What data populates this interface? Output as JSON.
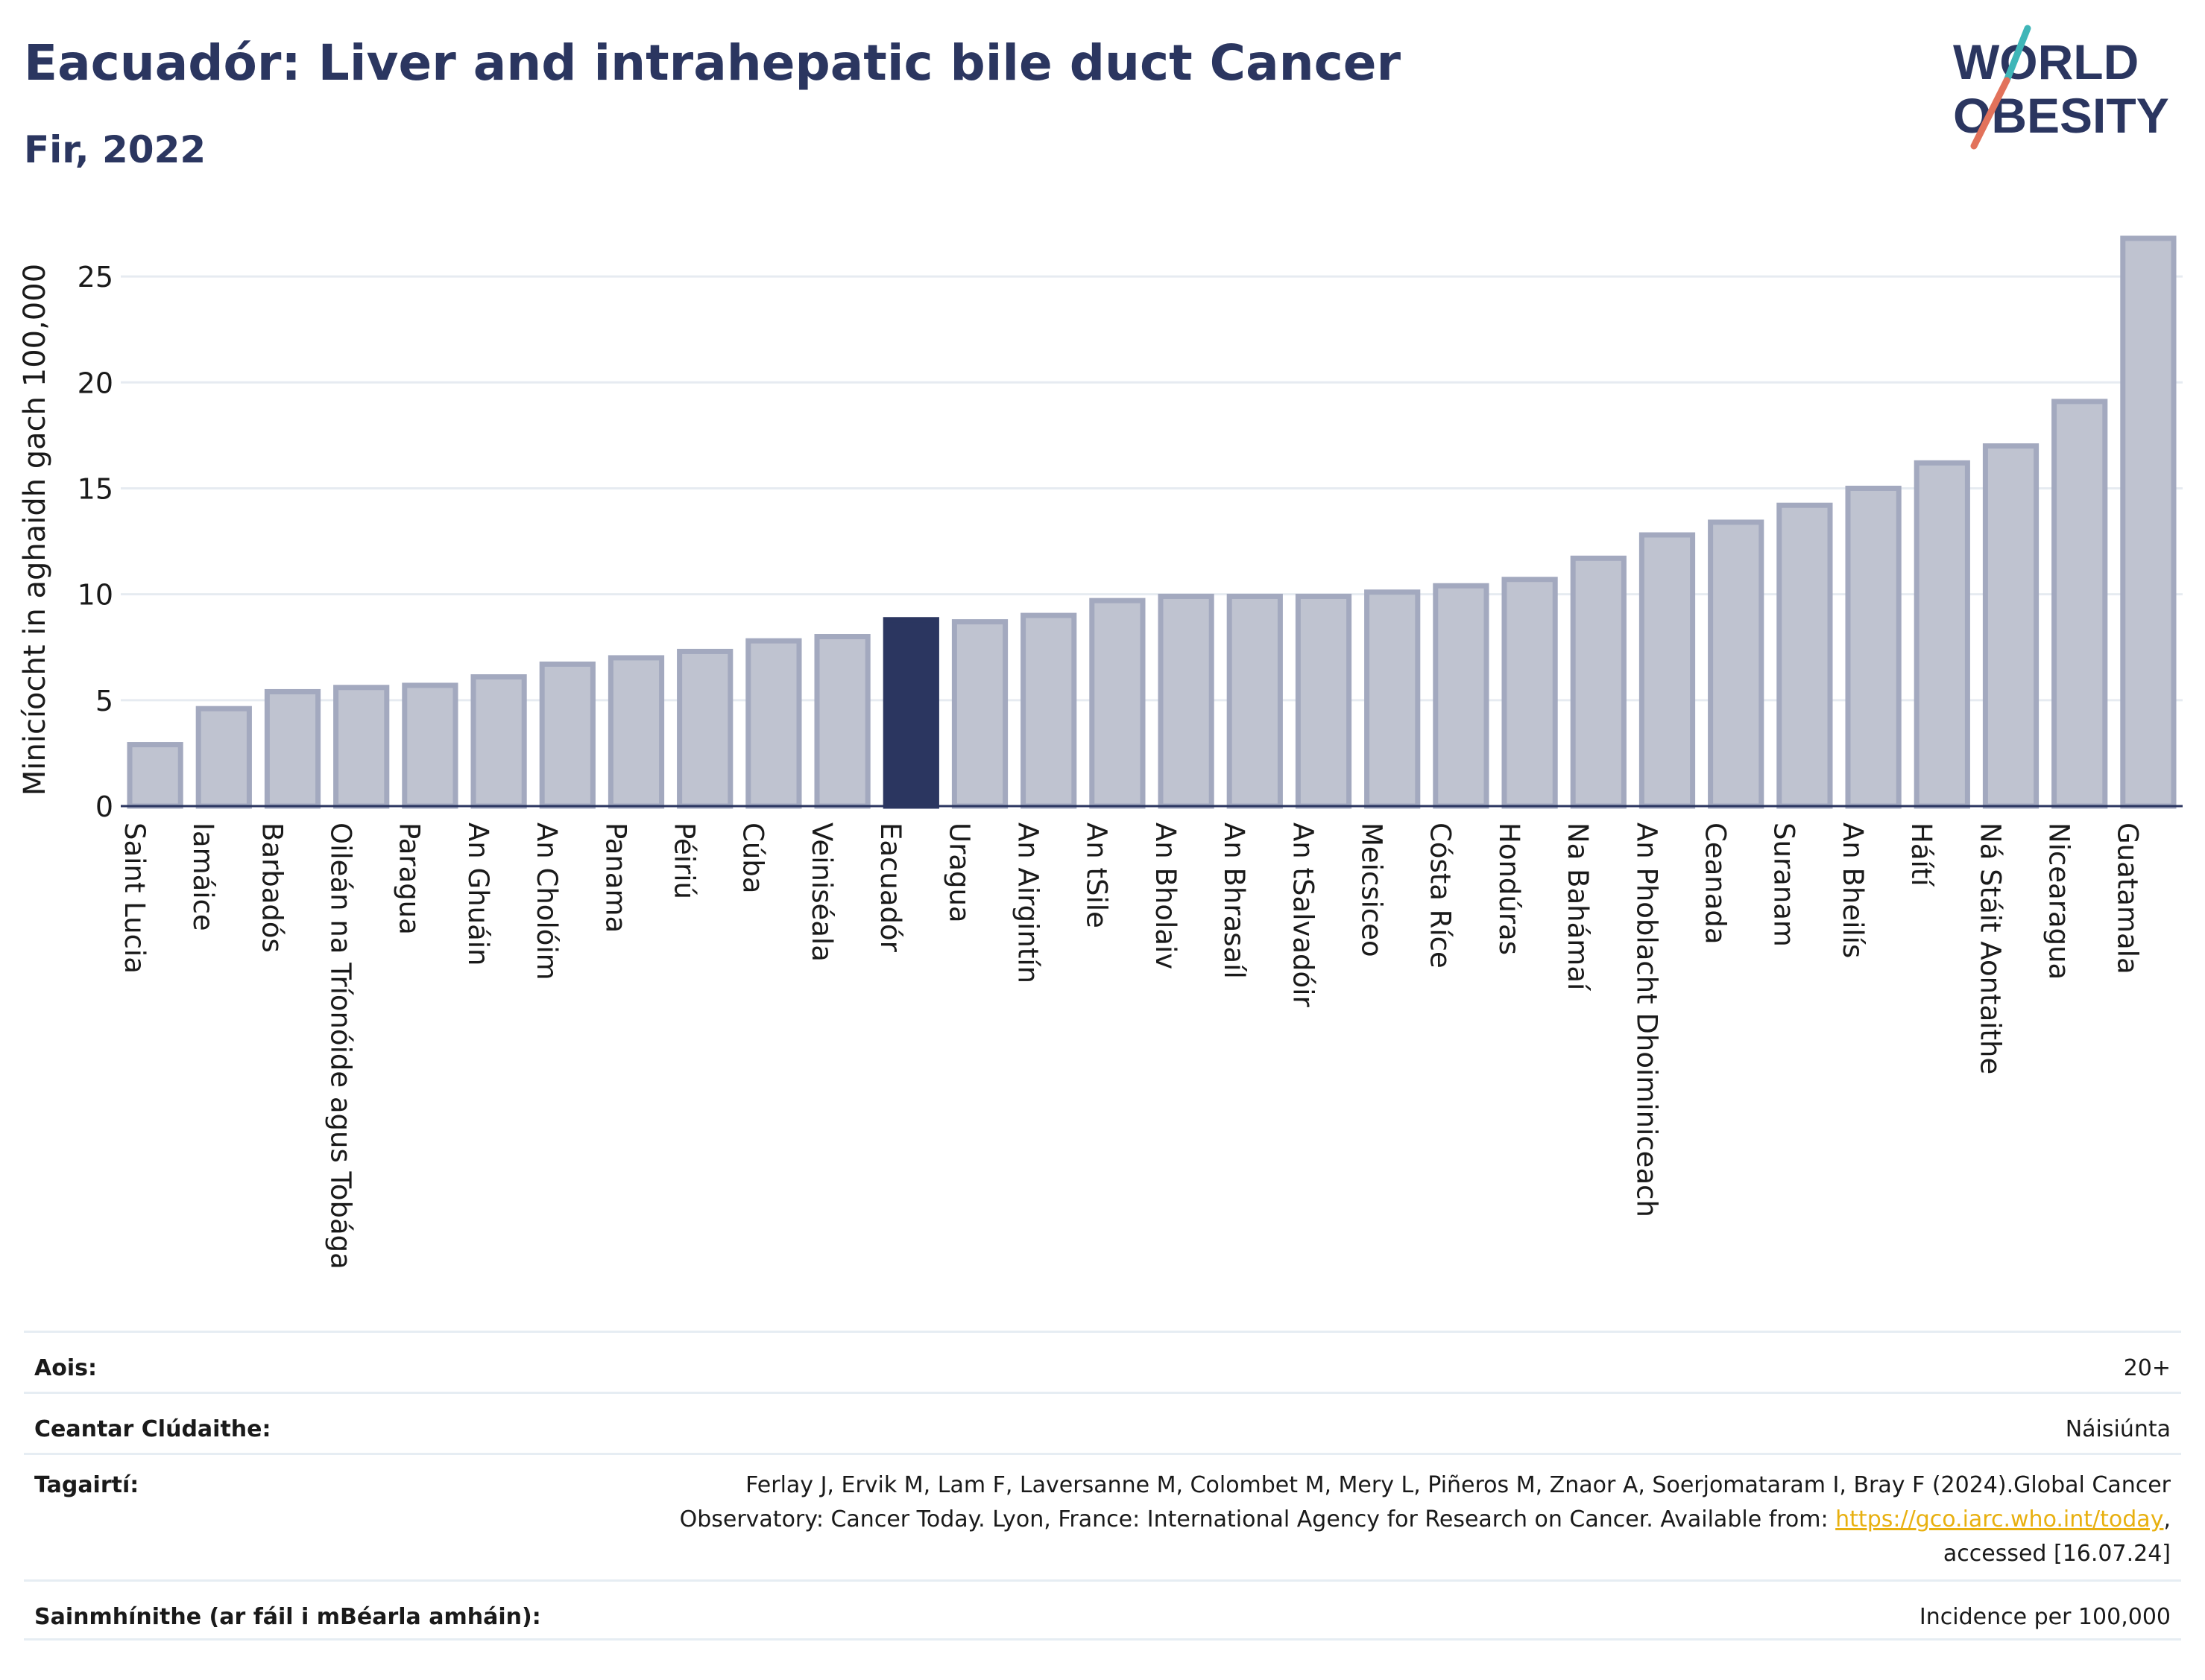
{
  "header": {
    "title": "Eacuadór: Liver and intrahepatic bile duct Cancer",
    "subtitle": "Fir, 2022"
  },
  "logo": {
    "line1": "WORLD",
    "line2": "OBESITY"
  },
  "colors": {
    "bar": "#bfc3d0",
    "bar_border": "#a3a9bf",
    "highlight": "#2b3660",
    "axis": "#2b3660",
    "grid": "#e6ebf1"
  },
  "chart_data": {
    "type": "bar",
    "title": "Eacuadór: Liver and intrahepatic bile duct Cancer",
    "subtitle": "Fir, 2022",
    "ylabel": "Minicíocht in aghaidh gach 100,000",
    "xlabel": "",
    "ylim": [
      0,
      27.5
    ],
    "yticks": [
      0,
      5,
      10,
      15,
      20,
      25
    ],
    "grid": true,
    "highlight": "Eacuadór",
    "categories": [
      "Saint Lucia",
      "Iamáice",
      "Barbadós",
      "Oileán na Tríonóide agus Tobága",
      "Paragua",
      "An Ghuáin",
      "An Cholóim",
      "Panama",
      "Péiriú",
      "Cúba",
      "Veiniséala",
      "Eacuadór",
      "Uragua",
      "An Airgintín",
      "An tSile",
      "An Bholaiv",
      "An Bhrasaíl",
      "An tSalvadóir",
      "Meicsiceo",
      "Cósta Ríce",
      "Hondúras",
      "Na Bahámaí",
      "An Phoblacht Dhoiminiceach",
      "Ceanada",
      "Suranam",
      "An Bheilís",
      "Háítí",
      "Ná Stáit Aontaithe",
      "Nicearagua",
      "Guatamala"
    ],
    "values": [
      2.9,
      4.6,
      5.4,
      5.6,
      5.7,
      6.1,
      6.7,
      7.0,
      7.3,
      7.8,
      8.0,
      8.8,
      8.7,
      9.0,
      9.7,
      9.9,
      9.9,
      9.9,
      10.1,
      10.4,
      10.7,
      11.7,
      12.8,
      13.4,
      14.2,
      15.0,
      16.2,
      17.0,
      19.1,
      26.8
    ]
  },
  "meta": {
    "age_label": "Aois:",
    "age_value": "20+",
    "area_label": "Ceantar Clúdaithe:",
    "area_value": "Náisiúnta",
    "ref_label": "Tagairtí:",
    "ref_line1": "Ferlay J, Ervik M, Lam F, Laversanne M, Colombet M, Mery L, Piñeros M, Znaor A, Soerjomataram I, Bray F (2024).Global Cancer",
    "ref_line2_pre": "Observatory: Cancer Today. Lyon, France: International Agency for Research on Cancer. Available from: ",
    "ref_link": "https://gco.iarc.who.int/today",
    "ref_line2_post": ",",
    "ref_line3": "accessed [16.07.24]",
    "def_label": "Sainmhínithe (ar fáil i mBéarla amháin):",
    "def_value": "Incidence per 100,000"
  }
}
